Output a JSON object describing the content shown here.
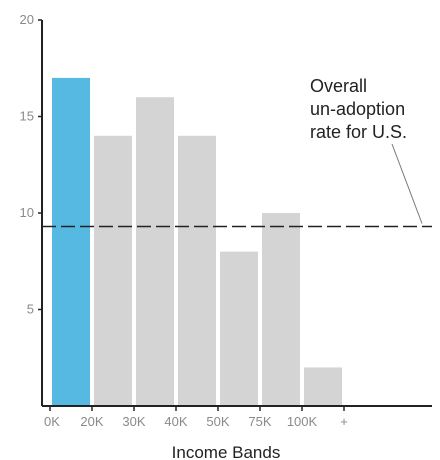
{
  "chart_data": {
    "type": "bar",
    "title": "",
    "xlabel": "Income Bands",
    "ylabel": "",
    "ylim": [
      0,
      20
    ],
    "yticks": [
      "5",
      "10",
      "15",
      "20"
    ],
    "ytick_values": [
      5,
      10,
      15,
      20
    ],
    "xtick_labels": [
      "0K",
      "20K",
      "30K",
      "40K",
      "50K",
      "75K",
      "100K",
      "+"
    ],
    "categories": [
      "0K–20K",
      "20K–30K",
      "30K–40K",
      "40K–50K",
      "50K–75K",
      "75K–100K",
      "100K+"
    ],
    "values": [
      17,
      14,
      16,
      14,
      8,
      10,
      2
    ],
    "highlight_index": 0,
    "reference_line": {
      "value": 9.3,
      "label_lines": [
        "Overall",
        "un-adoption",
        "rate for U.S."
      ]
    },
    "colors": {
      "highlight": "#56b9e2",
      "bar": "#d4d4d4",
      "axis": "#222222",
      "reference": "#222222"
    },
    "grid": false,
    "legend": "none"
  }
}
